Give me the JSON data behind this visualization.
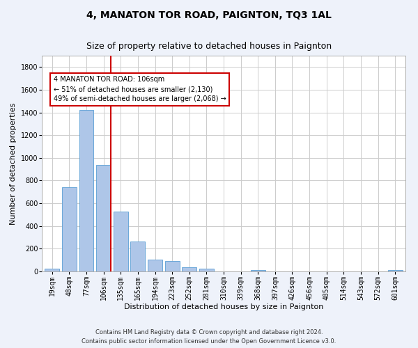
{
  "title": "4, MANATON TOR ROAD, PAIGNTON, TQ3 1AL",
  "subtitle": "Size of property relative to detached houses in Paignton",
  "xlabel": "Distribution of detached houses by size in Paignton",
  "ylabel": "Number of detached properties",
  "footnote1": "Contains HM Land Registry data © Crown copyright and database right 2024.",
  "footnote2": "Contains public sector information licensed under the Open Government Licence v3.0.",
  "categories": [
    "19sqm",
    "48sqm",
    "77sqm",
    "106sqm",
    "135sqm",
    "165sqm",
    "194sqm",
    "223sqm",
    "252sqm",
    "281sqm",
    "310sqm",
    "339sqm",
    "368sqm",
    "397sqm",
    "426sqm",
    "456sqm",
    "485sqm",
    "514sqm",
    "543sqm",
    "572sqm",
    "601sqm"
  ],
  "values": [
    22,
    740,
    1420,
    935,
    530,
    265,
    105,
    90,
    38,
    27,
    0,
    0,
    15,
    0,
    0,
    0,
    0,
    0,
    0,
    0,
    13
  ],
  "bar_color": "#aec6e8",
  "bar_edge_color": "#5a9fd4",
  "highlight_index": 3,
  "highlight_line_color": "#cc0000",
  "annotation_text": "4 MANATON TOR ROAD: 106sqm\n← 51% of detached houses are smaller (2,130)\n49% of semi-detached houses are larger (2,068) →",
  "annotation_box_color": "#cc0000",
  "annotation_text_color": "#000000",
  "ylim": [
    0,
    1900
  ],
  "yticks": [
    0,
    200,
    400,
    600,
    800,
    1000,
    1200,
    1400,
    1600,
    1800
  ],
  "bg_color": "#eef2fa",
  "plot_bg_color": "#ffffff",
  "grid_color": "#cccccc",
  "title_fontsize": 10,
  "subtitle_fontsize": 9,
  "axis_label_fontsize": 8,
  "tick_fontsize": 7,
  "annotation_fontsize": 7
}
